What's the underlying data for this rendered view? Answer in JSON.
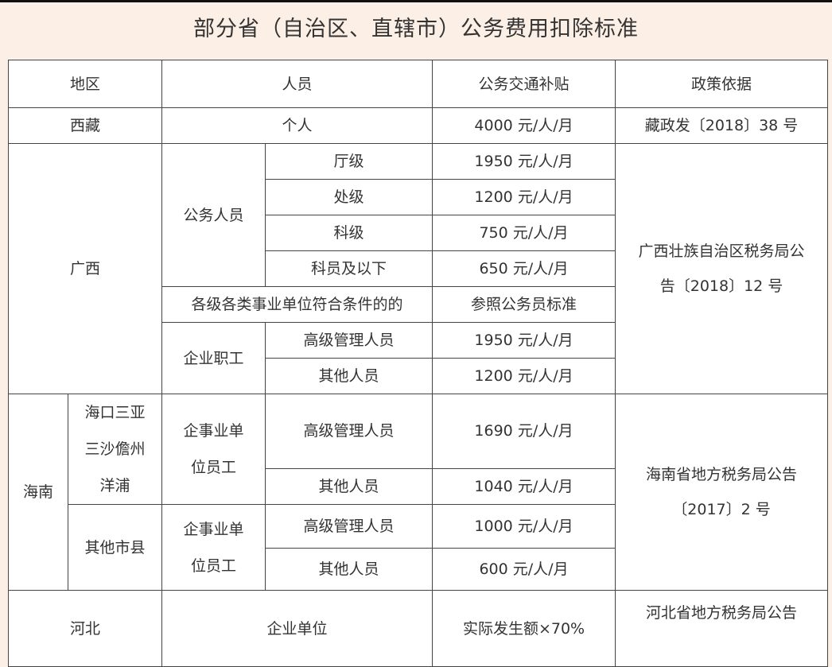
{
  "title": "部分省（自治区、直辖市）公务费用扣除标准",
  "header": {
    "region": "地区",
    "personnel": "人员",
    "subsidy": "公务交通补贴",
    "policy": "政策依据"
  },
  "xizang": {
    "region": "西藏",
    "personnel": "个人",
    "subsidy": "4000 元/人/月",
    "policy": "藏政发〔2018〕38 号"
  },
  "guangxi": {
    "region": "广西",
    "group1": "公务人员",
    "levels": [
      {
        "label": "厅级",
        "subsidy": "1950 元/人/月"
      },
      {
        "label": "处级",
        "subsidy": "1200 元/人/月"
      },
      {
        "label": "科级",
        "subsidy": "750 元/人/月"
      },
      {
        "label": "科员及以下",
        "subsidy": "650 元/人/月"
      }
    ],
    "institutions": {
      "label": "各级各类事业单位符合条件的的",
      "subsidy": "参照公务员标准"
    },
    "group2": "企业职工",
    "enterprise": [
      {
        "label": "高级管理人员",
        "subsidy": "1950 元/人/月"
      },
      {
        "label": "其他人员",
        "subsidy": "1200 元/人/月"
      }
    ],
    "policy": "广西壮族自治区税务局公\n告〔2018〕12 号"
  },
  "hainan": {
    "region": "海南",
    "areas": [
      {
        "name": "海口三亚\n三沙儋州\n洋浦",
        "group": "企事业单\n位员工",
        "rows": [
          {
            "label": "高级管理人员",
            "subsidy": "1690 元/人/月"
          },
          {
            "label": "其他人员",
            "subsidy": "1040 元/人/月"
          }
        ]
      },
      {
        "name": "其他市县",
        "group": "企事业单\n位员工",
        "rows": [
          {
            "label": "高级管理人员",
            "subsidy": "1000 元/人/月"
          },
          {
            "label": "其他人员",
            "subsidy": "600 元/人/月"
          }
        ]
      }
    ],
    "policy": "海南省地方税务局公告\n〔2017〕2 号"
  },
  "hebei": {
    "region": "河北",
    "personnel": "企业单位",
    "subsidy": "实际发生额×70%",
    "policy": "河北省地方税务局公告"
  }
}
